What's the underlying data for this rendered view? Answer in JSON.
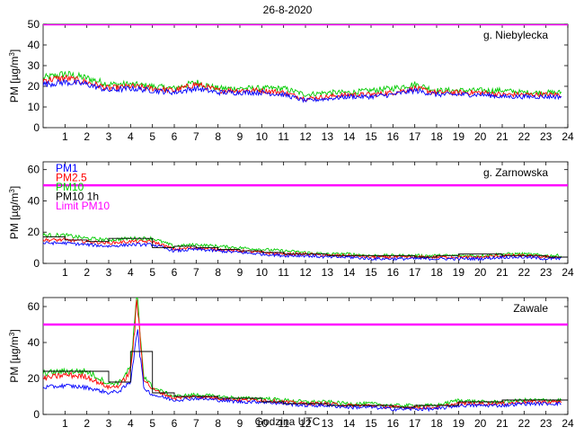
{
  "figure": {
    "title": "26-8-2020",
    "xlabel": "Godzina UTC"
  },
  "legend": {
    "placement": "top-left",
    "entries": [
      {
        "label": "PM1",
        "color": "#0000ff"
      },
      {
        "label": "PM2.5",
        "color": "#ff0000"
      },
      {
        "label": "PM10",
        "color": "#00cc00"
      },
      {
        "label": "PM10 1h",
        "color": "#000000"
      },
      {
        "label": "Limit PM10",
        "color": "#ff00ff"
      }
    ]
  },
  "chart_data": [
    {
      "type": "line",
      "station": "g. Niebylecka",
      "ylabel_prefix": "PM [µg/m",
      "ylabel_sup": "3",
      "ylabel_suffix": "]",
      "xlim": [
        0,
        24
      ],
      "ylim": [
        0,
        50
      ],
      "yticks": [
        0,
        10,
        20,
        30,
        40,
        50
      ],
      "xticks": [
        1,
        2,
        3,
        4,
        5,
        6,
        7,
        8,
        9,
        10,
        11,
        12,
        13,
        14,
        15,
        16,
        17,
        18,
        19,
        20,
        21,
        22,
        23,
        24
      ],
      "limit": 50,
      "hours": [
        0,
        1,
        2,
        3,
        4,
        5,
        6,
        7,
        8,
        9,
        10,
        11,
        12,
        13,
        14,
        15,
        16,
        17,
        18,
        19,
        20,
        21,
        22,
        23,
        23.7
      ],
      "series": [
        {
          "name": "PM1",
          "color": "#0000ff",
          "values": [
            21,
            22,
            21,
            18,
            19,
            18,
            17,
            19,
            17,
            17,
            17,
            16,
            13,
            14,
            15,
            15,
            16,
            18,
            16,
            16,
            16,
            15,
            15,
            15,
            15
          ]
        },
        {
          "name": "PM2.5",
          "color": "#ff0000",
          "values": [
            23,
            24,
            22,
            19,
            20,
            19,
            18,
            21,
            18,
            18,
            18,
            17,
            14,
            15,
            16,
            16,
            17,
            19,
            17,
            17,
            17,
            16,
            16,
            16,
            16
          ]
        },
        {
          "name": "PM10",
          "color": "#00cc00",
          "values": [
            24,
            26,
            24,
            21,
            21,
            20,
            19,
            22,
            19,
            19,
            19,
            19,
            16,
            17,
            17,
            18,
            19,
            21,
            18,
            18,
            18,
            18,
            17,
            17,
            17
          ]
        }
      ],
      "hourly": []
    },
    {
      "type": "line",
      "station": "g. Zarnowska",
      "ylabel_prefix": "PM [µg/m",
      "ylabel_sup": "3",
      "ylabel_suffix": "]",
      "xlim": [
        0,
        24
      ],
      "ylim": [
        0,
        65
      ],
      "yticks": [
        0,
        20,
        40,
        60
      ],
      "xticks": [
        1,
        2,
        3,
        4,
        5,
        6,
        7,
        8,
        9,
        10,
        11,
        12,
        13,
        14,
        15,
        16,
        17,
        18,
        19,
        20,
        21,
        22,
        23,
        24
      ],
      "limit": 50,
      "hours": [
        0,
        1,
        2,
        3,
        4,
        5,
        6,
        7,
        8,
        9,
        10,
        11,
        12,
        13,
        14,
        15,
        16,
        17,
        18,
        19,
        20,
        21,
        22,
        23,
        23.7
      ],
      "series": [
        {
          "name": "PM1",
          "color": "#0000ff",
          "values": [
            13,
            13,
            12,
            11,
            12,
            12,
            8,
            9,
            8,
            7,
            6,
            5,
            5,
            4,
            4,
            3,
            3,
            3,
            3,
            3,
            3,
            4,
            4,
            3,
            3
          ]
        },
        {
          "name": "PM2.5",
          "color": "#ff0000",
          "values": [
            15,
            15,
            14,
            13,
            14,
            14,
            9,
            10,
            9,
            8,
            7,
            6,
            6,
            5,
            5,
            4,
            4,
            4,
            4,
            4,
            4,
            5,
            5,
            4,
            4
          ]
        },
        {
          "name": "PM10",
          "color": "#00cc00",
          "values": [
            18,
            18,
            16,
            15,
            16,
            16,
            11,
            12,
            11,
            10,
            9,
            8,
            7,
            6,
            6,
            5,
            5,
            5,
            5,
            5,
            5,
            6,
            6,
            5,
            5
          ]
        }
      ],
      "hourly": [
        17,
        15,
        14,
        16,
        16,
        10,
        11,
        10,
        9,
        8,
        7,
        6,
        6,
        5,
        5,
        5,
        5,
        4,
        5,
        6,
        6,
        5,
        5,
        4
      ]
    },
    {
      "type": "line",
      "station": "Zawale",
      "ylabel_prefix": "PM [µg/m",
      "ylabel_sup": "3",
      "ylabel_suffix": "]",
      "xlim": [
        0,
        24
      ],
      "ylim": [
        0,
        65
      ],
      "yticks": [
        0,
        20,
        40,
        60
      ],
      "xticks": [
        1,
        2,
        3,
        4,
        5,
        6,
        7,
        8,
        9,
        10,
        11,
        12,
        13,
        14,
        15,
        16,
        17,
        18,
        19,
        20,
        21,
        22,
        23,
        24
      ],
      "limit": 50,
      "hours": [
        0,
        1,
        2,
        3,
        3.5,
        4,
        4.3,
        4.6,
        5,
        6,
        7,
        8,
        9,
        10,
        11,
        12,
        13,
        14,
        15,
        16,
        17,
        18,
        19,
        20,
        21,
        22,
        23,
        23.7
      ],
      "series": [
        {
          "name": "PM1",
          "color": "#0000ff",
          "values": [
            15,
            16,
            15,
            12,
            13,
            18,
            48,
            15,
            11,
            8,
            9,
            8,
            7,
            7,
            6,
            5,
            5,
            4,
            4,
            3,
            3,
            3,
            5,
            5,
            5,
            6,
            6,
            6
          ]
        },
        {
          "name": "PM2.5",
          "color": "#ff0000",
          "values": [
            20,
            22,
            21,
            15,
            16,
            24,
            62,
            20,
            14,
            9,
            10,
            9,
            8,
            8,
            7,
            6,
            6,
            5,
            5,
            4,
            4,
            4,
            6,
            6,
            6,
            7,
            7,
            7
          ]
        },
        {
          "name": "PM10",
          "color": "#00cc00",
          "values": [
            23,
            24,
            24,
            17,
            18,
            26,
            65,
            22,
            15,
            10,
            11,
            10,
            9,
            9,
            8,
            7,
            7,
            6,
            6,
            5,
            5,
            5,
            8,
            7,
            7,
            8,
            8,
            8
          ]
        }
      ],
      "hourly": [
        24,
        24,
        24,
        18,
        35,
        12,
        10,
        10,
        9,
        9,
        7,
        6,
        6,
        5,
        5,
        5,
        4,
        5,
        5,
        7,
        7,
        8,
        8,
        8
      ]
    }
  ]
}
